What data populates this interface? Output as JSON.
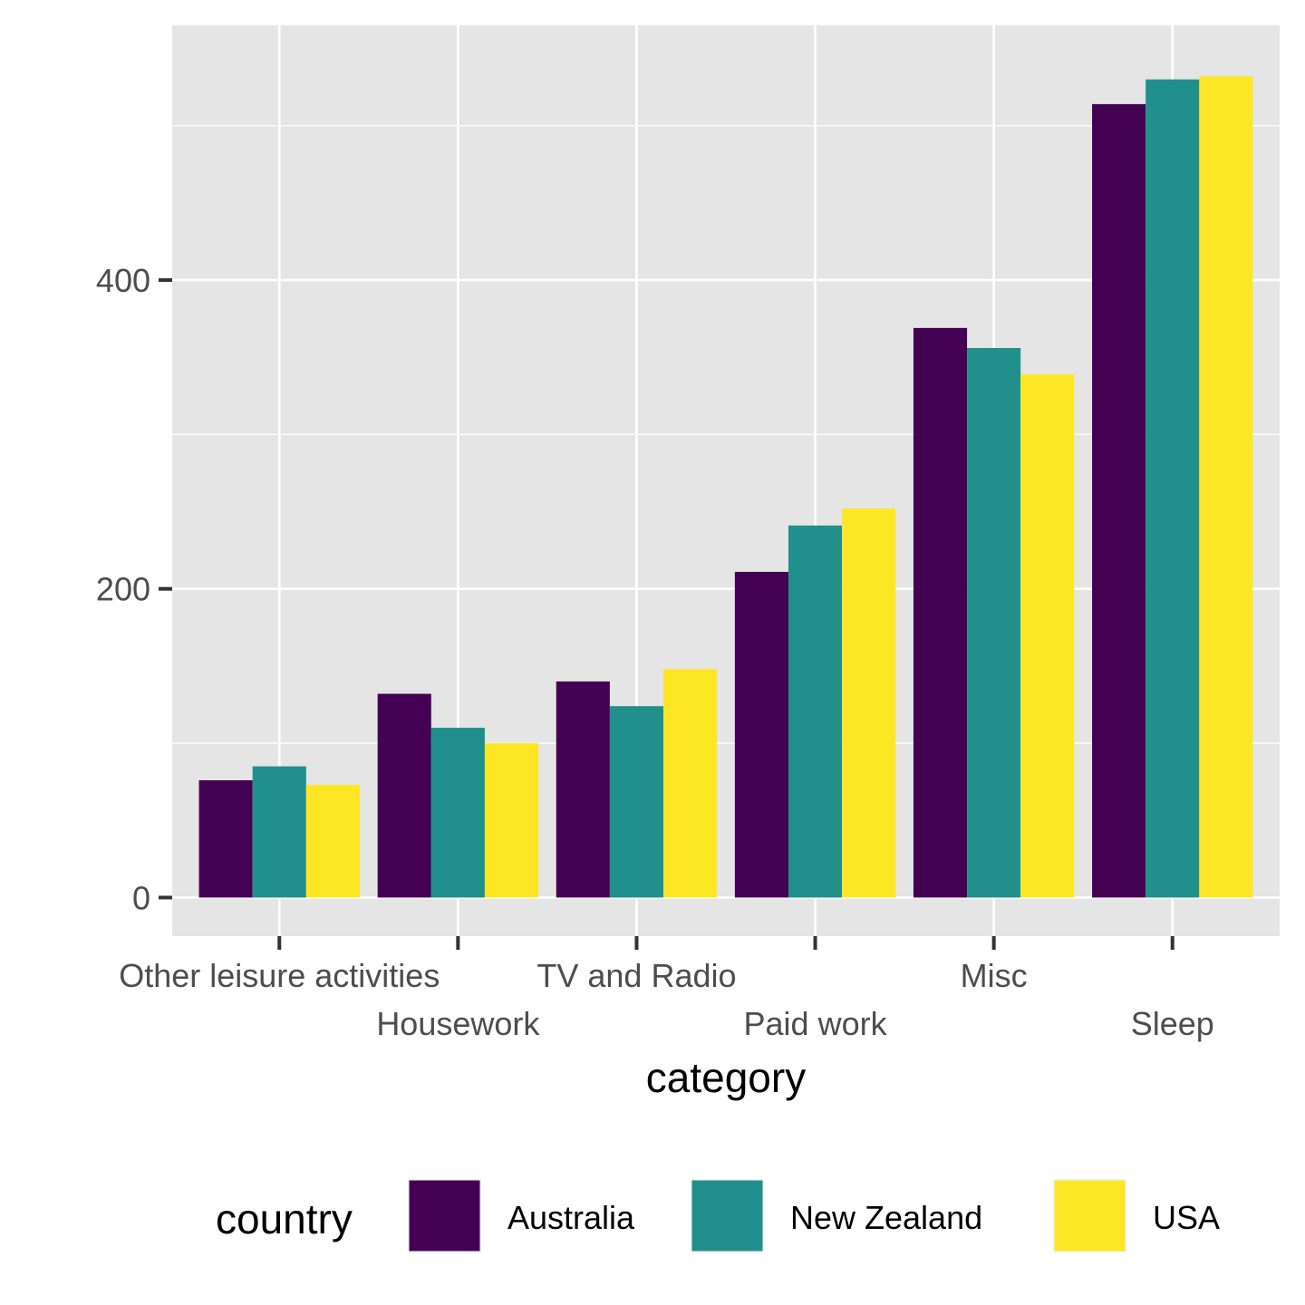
{
  "chart_data": {
    "type": "bar",
    "categories": [
      "Other leisure activities",
      "Housework",
      "TV and Radio",
      "Paid work",
      "Misc",
      "Sleep"
    ],
    "series": [
      {
        "name": "Australia",
        "color": "#440154",
        "values": [
          76,
          132,
          140,
          211,
          369,
          514
        ]
      },
      {
        "name": "New Zealand",
        "color": "#21908C",
        "values": [
          85,
          110,
          124,
          241,
          356,
          530
        ]
      },
      {
        "name": "USA",
        "color": "#FDE725",
        "values": [
          73,
          100,
          148,
          252,
          339,
          532
        ]
      }
    ],
    "xlabel": "category",
    "ylabel": "",
    "ylim": [
      -25,
      565
    ],
    "yticks": [
      0,
      200,
      400
    ],
    "grid": true,
    "legend": {
      "title": "country",
      "position": "bottom"
    },
    "colors": {
      "panel_background": "#E5E5E5",
      "grid": "#FFFFFF",
      "tick_text": "#4D4D4D"
    }
  }
}
